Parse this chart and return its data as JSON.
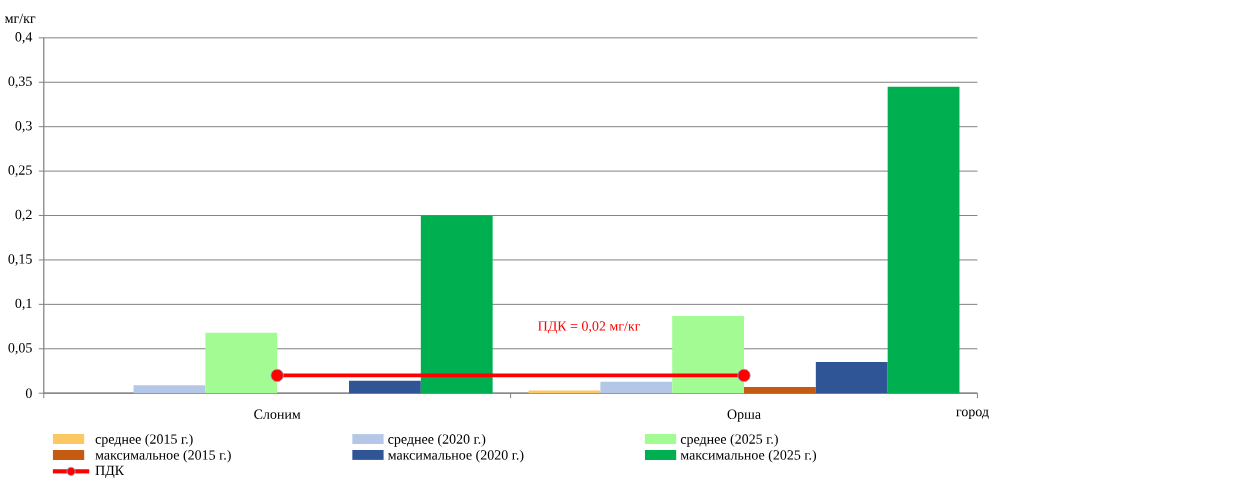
{
  "chart_data": {
    "type": "bar",
    "ylabel": "мг/кг",
    "xlabel": "город",
    "categories": [
      "Слоним",
      "Орша"
    ],
    "series": [
      {
        "name": "среднее (2015 г.)",
        "color": "#fcc864",
        "values": [
          null,
          0.003
        ]
      },
      {
        "name": "максимальное (2015 г.)",
        "color": "#c55a11",
        "values": [
          null,
          0.007
        ]
      },
      {
        "name": "среднее (2020 г.)",
        "color": "#b4c7e7",
        "values": [
          0.009,
          0.013
        ]
      },
      {
        "name": "максимальное (2020 г.)",
        "color": "#2f5597",
        "values": [
          0.014,
          0.035
        ]
      },
      {
        "name": "среднее (2025 г.)",
        "color": "#a3fc93",
        "values": [
          0.068,
          0.087
        ]
      },
      {
        "name": "максимальное (2025 г.)",
        "color": "#00b050",
        "values": [
          0.2,
          0.345
        ]
      },
      {
        "name": "ПДК",
        "type": "line",
        "marker": "circle",
        "color": "#ff0000",
        "values": [
          0.02,
          0.02
        ]
      }
    ],
    "annotations": [
      "ПДК = 0,02 мг/кг"
    ],
    "ylim": [
      0,
      0.4
    ],
    "yticks": [
      0,
      {
        "value": 0.05,
        "label": "0,05"
      },
      {
        "value": 0.1,
        "label": "0,1"
      },
      {
        "value": 0.15,
        "label": "0,15"
      },
      {
        "value": 0.2,
        "label": "0,2"
      },
      {
        "value": 0.25,
        "label": "0,25"
      },
      {
        "value": 0.3,
        "label": "0,3"
      },
      {
        "value": 0.35,
        "label": "0,35"
      },
      {
        "value": 0.4,
        "label": "0,4"
      }
    ],
    "grid": "y",
    "legend": "bottom"
  }
}
